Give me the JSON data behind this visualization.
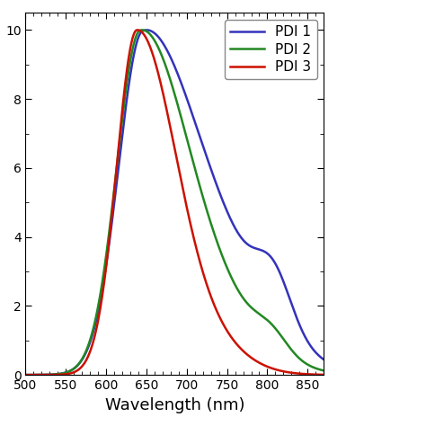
{
  "title": "",
  "xlabel": "Wavelength (nm)",
  "ylabel": "",
  "xlim": [
    500,
    870
  ],
  "ylim": [
    0,
    1.05
  ],
  "xticks": [
    500,
    550,
    600,
    650,
    700,
    750,
    800,
    850
  ],
  "ytick_positions": [
    0.0,
    0.2,
    0.4,
    0.6,
    0.8,
    1.0
  ],
  "ytick_labels": [
    "0",
    "2",
    "4",
    "6",
    "8",
    "10"
  ],
  "legend_labels": [
    "PDI 1",
    "PDI 2",
    "PDI 3"
  ],
  "line_colors": [
    "#3333bb",
    "#228822",
    "#cc1100"
  ],
  "background_color": "#ffffff",
  "linewidth": 1.8
}
